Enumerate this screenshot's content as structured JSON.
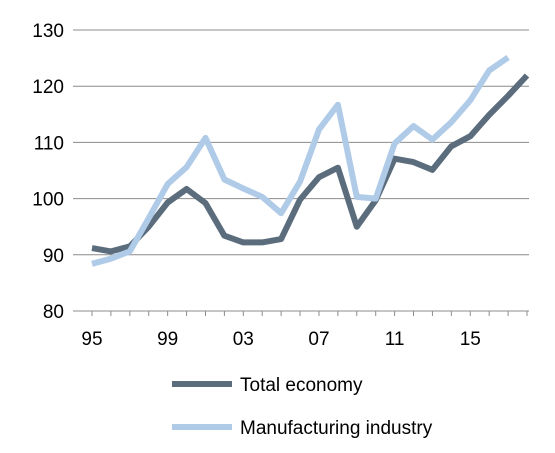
{
  "chart_data": {
    "type": "line",
    "title": "",
    "xlabel": "",
    "ylabel": "",
    "x": [
      1995,
      1996,
      1997,
      1998,
      1999,
      2000,
      2001,
      2002,
      2003,
      2004,
      2005,
      2006,
      2007,
      2008,
      2009,
      2010,
      2011,
      2012,
      2013,
      2014,
      2015,
      2016,
      2017,
      2018
    ],
    "xlim": [
      1995,
      2018
    ],
    "x_ticks": [
      1995,
      1999,
      2003,
      2007,
      2011,
      2015
    ],
    "x_tick_labels": [
      "95",
      "99",
      "03",
      "07",
      "11",
      "15"
    ],
    "ylim": [
      80,
      130
    ],
    "y_ticks": [
      80,
      90,
      100,
      110,
      120,
      130
    ],
    "y_tick_labels": [
      "80",
      "90",
      "100",
      "110",
      "120",
      "130"
    ],
    "grid": "horizontal",
    "legend_position": "bottom",
    "series": [
      {
        "name": "Total economy",
        "color": "#5b6c7d",
        "values": [
          91.2,
          90.6,
          91.5,
          95.0,
          99.3,
          101.7,
          99.2,
          93.4,
          92.2,
          92.2,
          92.8,
          99.8,
          103.8,
          105.5,
          95.0,
          99.7,
          107.1,
          106.5,
          105.1,
          109.3,
          111.1,
          114.9,
          118.3,
          121.9
        ]
      },
      {
        "name": "Manufacturing industry",
        "color": "#afcbe8",
        "values": [
          88.4,
          89.3,
          90.6,
          96.5,
          102.6,
          105.6,
          110.8,
          103.4,
          101.8,
          100.3,
          97.4,
          103.0,
          112.3,
          116.7,
          100.3,
          100.0,
          109.8,
          112.9,
          110.5,
          113.6,
          117.5,
          122.8,
          125.1,
          null
        ]
      }
    ]
  }
}
